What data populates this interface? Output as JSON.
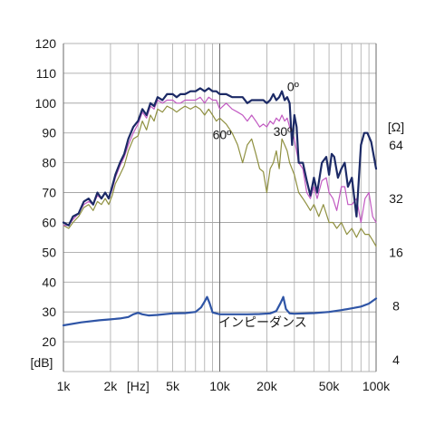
{
  "chart_data": {
    "type": "line",
    "x_scale": "log",
    "xlim": [
      1000,
      100000
    ],
    "ylim": [
      10,
      120
    ],
    "grid": true,
    "x_tick_values": [
      1000,
      2000,
      5000,
      10000,
      20000,
      50000,
      100000
    ],
    "x_tick_labels": [
      "1k",
      "2k",
      "5k",
      "10k",
      "20k",
      "50k",
      "100k"
    ],
    "x_unit_label": "[Hz]",
    "x_unit_at": 3000,
    "y_ticks": [
      10,
      20,
      30,
      40,
      50,
      60,
      70,
      80,
      90,
      100,
      110,
      120
    ],
    "y_tick_labels": [
      "",
      "20",
      "30",
      "40",
      "50",
      "60",
      "70",
      "80",
      "90",
      "100",
      "110",
      "120"
    ],
    "y_unit_label": "[dB]",
    "right_axis": {
      "unit_label": "[Ω]",
      "ticks": [
        {
          "label": "64",
          "at_db": 86
        },
        {
          "label": "32",
          "at_db": 68
        },
        {
          "label": "16",
          "at_db": 50
        },
        {
          "label": "8",
          "at_db": 32
        },
        {
          "label": "4",
          "at_db": 14
        }
      ]
    },
    "series": [
      {
        "name": "0º",
        "color": "#1c2a66",
        "points": [
          [
            1000,
            60
          ],
          [
            1080,
            59
          ],
          [
            1150,
            62
          ],
          [
            1250,
            63
          ],
          [
            1350,
            67
          ],
          [
            1450,
            68
          ],
          [
            1550,
            66
          ],
          [
            1650,
            70
          ],
          [
            1750,
            68
          ],
          [
            1850,
            70
          ],
          [
            1950,
            68
          ],
          [
            2050,
            72
          ],
          [
            2150,
            76
          ],
          [
            2300,
            80
          ],
          [
            2450,
            83
          ],
          [
            2600,
            88
          ],
          [
            2800,
            92
          ],
          [
            3000,
            94
          ],
          [
            3200,
            98
          ],
          [
            3400,
            96
          ],
          [
            3600,
            100
          ],
          [
            3800,
            99
          ],
          [
            4000,
            102
          ],
          [
            4300,
            101
          ],
          [
            4600,
            103
          ],
          [
            5000,
            103
          ],
          [
            5300,
            102
          ],
          [
            5600,
            103
          ],
          [
            6000,
            103
          ],
          [
            6500,
            104
          ],
          [
            7000,
            104
          ],
          [
            7500,
            105
          ],
          [
            8000,
            104
          ],
          [
            8500,
            105
          ],
          [
            9000,
            104
          ],
          [
            9500,
            104
          ],
          [
            10000,
            103
          ],
          [
            11000,
            103
          ],
          [
            12000,
            102
          ],
          [
            13000,
            102
          ],
          [
            14000,
            102
          ],
          [
            15000,
            100
          ],
          [
            16000,
            101
          ],
          [
            17000,
            101
          ],
          [
            18000,
            101
          ],
          [
            19000,
            101
          ],
          [
            20000,
            100
          ],
          [
            21000,
            101
          ],
          [
            22000,
            103
          ],
          [
            23000,
            101
          ],
          [
            24000,
            102
          ],
          [
            25000,
            104
          ],
          [
            26000,
            101
          ],
          [
            27000,
            102
          ],
          [
            28000,
            100
          ],
          [
            29000,
            86
          ],
          [
            30000,
            96
          ],
          [
            31000,
            92
          ],
          [
            32000,
            80
          ],
          [
            34000,
            80
          ],
          [
            36000,
            74
          ],
          [
            38000,
            69
          ],
          [
            40000,
            75
          ],
          [
            42000,
            70
          ],
          [
            45000,
            80
          ],
          [
            48000,
            82
          ],
          [
            50000,
            76
          ],
          [
            52000,
            83
          ],
          [
            54000,
            82
          ],
          [
            57000,
            75
          ],
          [
            60000,
            78
          ],
          [
            63000,
            80
          ],
          [
            66000,
            72
          ],
          [
            70000,
            75
          ],
          [
            75000,
            62
          ],
          [
            80000,
            86
          ],
          [
            84000,
            90
          ],
          [
            88000,
            90
          ],
          [
            93000,
            87
          ],
          [
            100000,
            78
          ]
        ]
      },
      {
        "name": "30º",
        "color": "#c25ac2",
        "points": [
          [
            1000,
            59
          ],
          [
            1080,
            59
          ],
          [
            1150,
            61
          ],
          [
            1250,
            63
          ],
          [
            1350,
            66
          ],
          [
            1450,
            67
          ],
          [
            1550,
            66
          ],
          [
            1650,
            69
          ],
          [
            1750,
            68
          ],
          [
            1850,
            70
          ],
          [
            1950,
            68
          ],
          [
            2050,
            71
          ],
          [
            2150,
            75
          ],
          [
            2300,
            79
          ],
          [
            2450,
            82
          ],
          [
            2600,
            86
          ],
          [
            2800,
            90
          ],
          [
            3000,
            93
          ],
          [
            3200,
            97
          ],
          [
            3400,
            95
          ],
          [
            3600,
            99
          ],
          [
            3800,
            98
          ],
          [
            4000,
            101
          ],
          [
            4300,
            100
          ],
          [
            4600,
            101
          ],
          [
            5000,
            101
          ],
          [
            5300,
            100
          ],
          [
            5600,
            100
          ],
          [
            6000,
            101
          ],
          [
            6500,
            101
          ],
          [
            7000,
            101
          ],
          [
            7500,
            102
          ],
          [
            8000,
            100
          ],
          [
            8500,
            102
          ],
          [
            9000,
            101
          ],
          [
            9500,
            101
          ],
          [
            10000,
            98
          ],
          [
            11000,
            100
          ],
          [
            12000,
            98
          ],
          [
            13000,
            97
          ],
          [
            14000,
            96
          ],
          [
            15000,
            94
          ],
          [
            16000,
            96
          ],
          [
            17000,
            94
          ],
          [
            18000,
            92
          ],
          [
            19000,
            93
          ],
          [
            20000,
            92
          ],
          [
            21000,
            94
          ],
          [
            22000,
            93
          ],
          [
            23000,
            95
          ],
          [
            24000,
            94
          ],
          [
            25000,
            96
          ],
          [
            26000,
            94
          ],
          [
            27000,
            95
          ],
          [
            28000,
            92
          ],
          [
            30000,
            88
          ],
          [
            32000,
            80
          ],
          [
            34000,
            78
          ],
          [
            36000,
            70
          ],
          [
            38000,
            68
          ],
          [
            40000,
            72
          ],
          [
            42000,
            68
          ],
          [
            45000,
            74
          ],
          [
            48000,
            75
          ],
          [
            50000,
            70
          ],
          [
            53000,
            68
          ],
          [
            56000,
            64
          ],
          [
            60000,
            72
          ],
          [
            63000,
            72
          ],
          [
            66000,
            66
          ],
          [
            70000,
            66
          ],
          [
            75000,
            68
          ],
          [
            80000,
            60
          ],
          [
            85000,
            68
          ],
          [
            90000,
            70
          ],
          [
            95000,
            62
          ],
          [
            100000,
            60
          ]
        ]
      },
      {
        "name": "60º",
        "color": "#8f9040",
        "points": [
          [
            1000,
            59
          ],
          [
            1080,
            58
          ],
          [
            1150,
            60
          ],
          [
            1250,
            62
          ],
          [
            1350,
            65
          ],
          [
            1450,
            66
          ],
          [
            1550,
            64
          ],
          [
            1650,
            67
          ],
          [
            1750,
            66
          ],
          [
            1850,
            68
          ],
          [
            1950,
            66
          ],
          [
            2050,
            69
          ],
          [
            2150,
            73
          ],
          [
            2300,
            76
          ],
          [
            2450,
            79
          ],
          [
            2600,
            84
          ],
          [
            2800,
            88
          ],
          [
            3000,
            89
          ],
          [
            3200,
            94
          ],
          [
            3400,
            91
          ],
          [
            3600,
            96
          ],
          [
            3800,
            94
          ],
          [
            4000,
            98
          ],
          [
            4300,
            97
          ],
          [
            4600,
            99
          ],
          [
            5000,
            98
          ],
          [
            5300,
            97
          ],
          [
            5600,
            98
          ],
          [
            6000,
            99
          ],
          [
            6500,
            98
          ],
          [
            7000,
            99
          ],
          [
            7500,
            98
          ],
          [
            8000,
            96
          ],
          [
            8500,
            98
          ],
          [
            9000,
            96
          ],
          [
            9500,
            94
          ],
          [
            10000,
            95
          ],
          [
            11000,
            93
          ],
          [
            12000,
            90
          ],
          [
            13000,
            86
          ],
          [
            14000,
            80
          ],
          [
            15000,
            86
          ],
          [
            16000,
            88
          ],
          [
            17000,
            83
          ],
          [
            18000,
            78
          ],
          [
            19000,
            77
          ],
          [
            20000,
            70
          ],
          [
            21000,
            78
          ],
          [
            22000,
            80
          ],
          [
            23000,
            84
          ],
          [
            24000,
            78
          ],
          [
            25000,
            88
          ],
          [
            26000,
            86
          ],
          [
            27000,
            84
          ],
          [
            28000,
            80
          ],
          [
            30000,
            76
          ],
          [
            32000,
            70
          ],
          [
            34000,
            68
          ],
          [
            36000,
            66
          ],
          [
            38000,
            64
          ],
          [
            40000,
            66
          ],
          [
            43000,
            62
          ],
          [
            46000,
            66
          ],
          [
            50000,
            60
          ],
          [
            53000,
            60
          ],
          [
            56000,
            58
          ],
          [
            60000,
            60
          ],
          [
            65000,
            56
          ],
          [
            70000,
            58
          ],
          [
            75000,
            55
          ],
          [
            80000,
            58
          ],
          [
            85000,
            56
          ],
          [
            90000,
            56
          ],
          [
            95000,
            54
          ],
          [
            100000,
            52
          ]
        ]
      },
      {
        "name": "インピーダンス",
        "color": "#2f55a6",
        "points": [
          [
            1000,
            25.5
          ],
          [
            1300,
            26.5
          ],
          [
            1700,
            27.2
          ],
          [
            2000,
            27.5
          ],
          [
            2300,
            27.8
          ],
          [
            2600,
            28.3
          ],
          [
            2800,
            29.2
          ],
          [
            3000,
            29.7
          ],
          [
            3200,
            29.2
          ],
          [
            3500,
            28.8
          ],
          [
            4000,
            29
          ],
          [
            5000,
            29.5
          ],
          [
            6000,
            29.6
          ],
          [
            7000,
            30
          ],
          [
            7600,
            31.5
          ],
          [
            8000,
            33.5
          ],
          [
            8300,
            35
          ],
          [
            8600,
            33
          ],
          [
            9000,
            29.8
          ],
          [
            10000,
            29.2
          ],
          [
            12000,
            29.2
          ],
          [
            15000,
            29.2
          ],
          [
            18000,
            29.3
          ],
          [
            21000,
            29.5
          ],
          [
            23000,
            30.3
          ],
          [
            24500,
            33
          ],
          [
            25500,
            35
          ],
          [
            26500,
            31
          ],
          [
            28000,
            29.5
          ],
          [
            30000,
            29.4
          ],
          [
            40000,
            29.6
          ],
          [
            50000,
            30
          ],
          [
            60000,
            30.6
          ],
          [
            70000,
            31.2
          ],
          [
            80000,
            31.8
          ],
          [
            90000,
            32.8
          ],
          [
            100000,
            34.5
          ]
        ]
      }
    ],
    "annotations": [
      {
        "text": "0º",
        "x": 27000,
        "y": 104
      },
      {
        "text": "30º",
        "x": 22000,
        "y": 89
      },
      {
        "text": "60º",
        "x": 9000,
        "y": 88
      },
      {
        "text": "インピーダンス",
        "x": 9800,
        "y": 25
      }
    ]
  }
}
